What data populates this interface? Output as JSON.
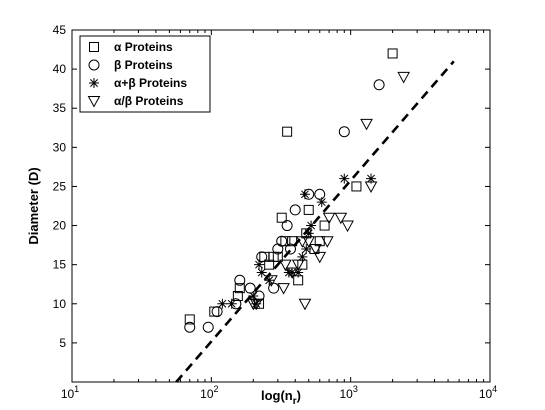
{
  "chart_data": {
    "type": "scatter",
    "title": "",
    "xlabel": "log(n_r)",
    "xlabel_main": "log(n",
    "xlabel_sub": "r",
    "xlabel_close": ")",
    "ylabel": "Diameter (D)",
    "xscale": "log",
    "xlim": [
      10,
      10000
    ],
    "ylim": [
      0,
      45
    ],
    "x_ticks": [
      {
        "value": 10,
        "base": "10",
        "exp": "1"
      },
      {
        "value": 100,
        "base": "10",
        "exp": "2"
      },
      {
        "value": 1000,
        "base": "10",
        "exp": "3"
      },
      {
        "value": 10000,
        "base": "10",
        "exp": "4"
      }
    ],
    "y_ticks": [
      5,
      10,
      15,
      20,
      25,
      30,
      35,
      40,
      45
    ],
    "grid": false,
    "legend_position": "top-left",
    "series": [
      {
        "name": "α Proteins",
        "marker": "square",
        "points": [
          [
            70,
            8
          ],
          [
            105,
            9
          ],
          [
            155,
            11
          ],
          [
            160,
            12
          ],
          [
            220,
            10
          ],
          [
            240,
            16
          ],
          [
            260,
            15
          ],
          [
            280,
            16
          ],
          [
            300,
            16
          ],
          [
            320,
            21
          ],
          [
            340,
            18
          ],
          [
            350,
            32
          ],
          [
            380,
            18
          ],
          [
            420,
            13
          ],
          [
            450,
            15
          ],
          [
            480,
            19
          ],
          [
            500,
            22
          ],
          [
            550,
            17
          ],
          [
            600,
            18
          ],
          [
            650,
            20
          ],
          [
            1100,
            25
          ],
          [
            2000,
            42
          ]
        ]
      },
      {
        "name": "β Proteins",
        "marker": "circle",
        "points": [
          [
            70,
            7
          ],
          [
            95,
            7
          ],
          [
            110,
            9
          ],
          [
            150,
            10
          ],
          [
            160,
            13
          ],
          [
            190,
            12
          ],
          [
            220,
            11
          ],
          [
            230,
            16
          ],
          [
            280,
            12
          ],
          [
            300,
            17
          ],
          [
            320,
            18
          ],
          [
            350,
            20
          ],
          [
            370,
            17
          ],
          [
            400,
            22
          ],
          [
            500,
            24
          ],
          [
            600,
            24
          ],
          [
            900,
            32
          ],
          [
            1600,
            38
          ]
        ]
      },
      {
        "name": "α+β Proteins",
        "marker": "asterisk",
        "points": [
          [
            120,
            10
          ],
          [
            140,
            10
          ],
          [
            200,
            11
          ],
          [
            210,
            10
          ],
          [
            220,
            15
          ],
          [
            230,
            14
          ],
          [
            260,
            13
          ],
          [
            360,
            14
          ],
          [
            380,
            14
          ],
          [
            420,
            14
          ],
          [
            450,
            16
          ],
          [
            470,
            24
          ],
          [
            480,
            17
          ],
          [
            500,
            19
          ],
          [
            520,
            20
          ],
          [
            620,
            23
          ],
          [
            900,
            26
          ],
          [
            1400,
            26
          ]
        ]
      },
      {
        "name": "α/β Proteins",
        "marker": "triangle-down",
        "points": [
          [
            200,
            10
          ],
          [
            210,
            10
          ],
          [
            270,
            13
          ],
          [
            330,
            12
          ],
          [
            340,
            15
          ],
          [
            380,
            14
          ],
          [
            420,
            15
          ],
          [
            450,
            18
          ],
          [
            470,
            10
          ],
          [
            500,
            18
          ],
          [
            560,
            17
          ],
          [
            600,
            16
          ],
          [
            680,
            18
          ],
          [
            700,
            21
          ],
          [
            850,
            21
          ],
          [
            950,
            20
          ],
          [
            1300,
            33
          ],
          [
            1400,
            25
          ],
          [
            2400,
            39
          ]
        ]
      }
    ],
    "fit_line": {
      "style": "dashed",
      "x_start": 56,
      "y_start": 0,
      "x_end": 5500,
      "y_end": 41
    }
  }
}
